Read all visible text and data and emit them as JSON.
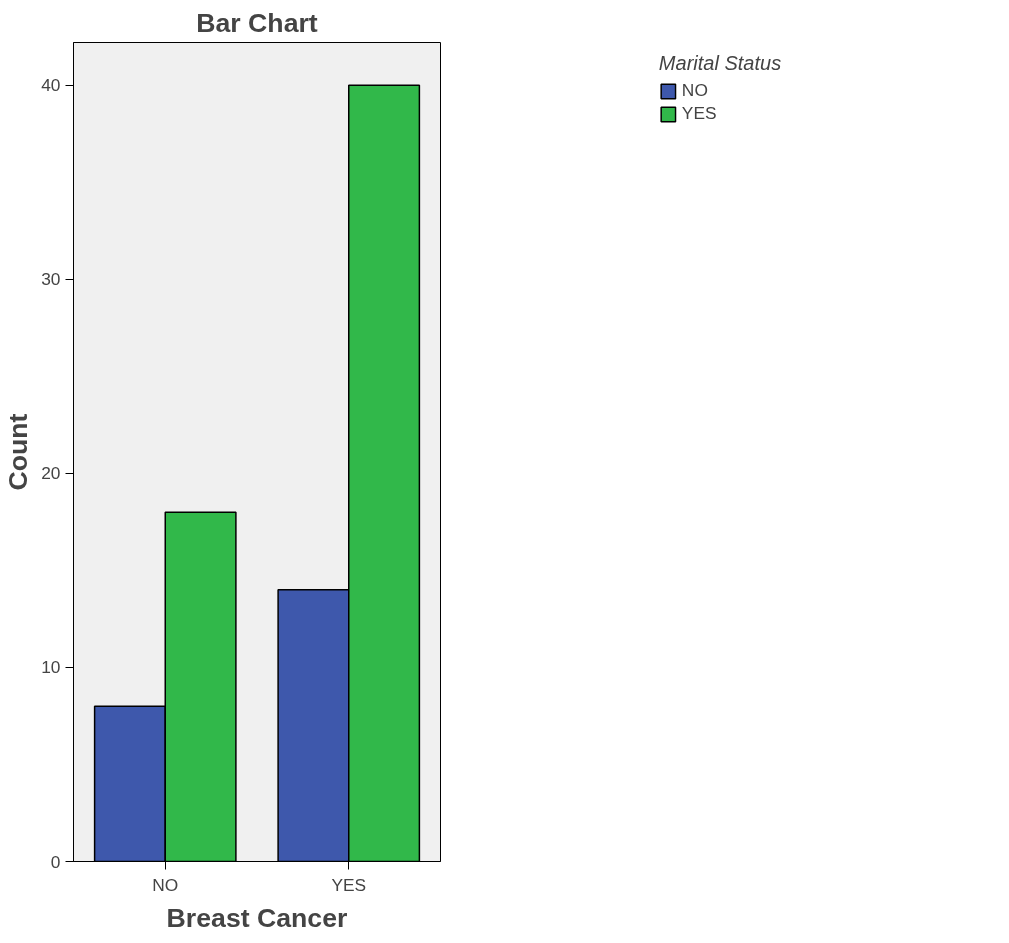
{
  "chart_data": {
    "type": "bar",
    "title": "Bar Chart",
    "xlabel": "Breast Cancer",
    "ylabel": "Count",
    "legend_title": "Marital Status",
    "categories": [
      "NO",
      "YES"
    ],
    "series": [
      {
        "name": "NO",
        "color": "#3e58ac",
        "values": [
          8,
          14
        ]
      },
      {
        "name": "YES",
        "color": "#31b84a",
        "values": [
          18,
          40
        ]
      }
    ],
    "ylim": [
      0,
      42.2
    ],
    "yticks": [
      0,
      10,
      20,
      30,
      40
    ],
    "grid": false,
    "legend": "top right"
  }
}
